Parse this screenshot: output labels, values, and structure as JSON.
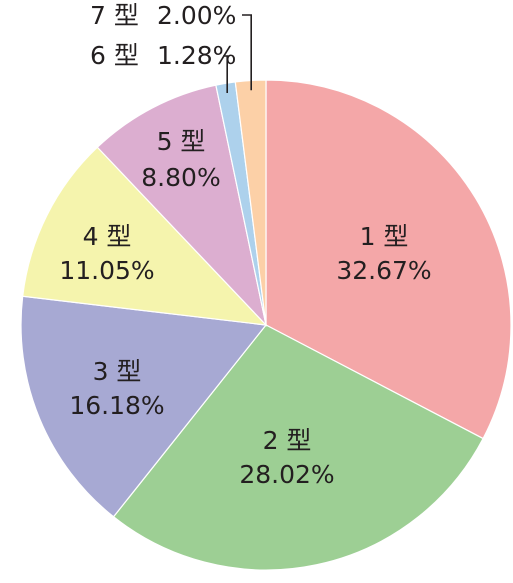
{
  "chart_data": {
    "type": "pie",
    "title": "",
    "slices": [
      {
        "label": "1 型",
        "value": 32.67,
        "value_text": "32.67%",
        "color": "#f4a7a8"
      },
      {
        "label": "2 型",
        "value": 28.02,
        "value_text": "28.02%",
        "color": "#9dcf94"
      },
      {
        "label": "3 型",
        "value": 16.18,
        "value_text": "16.18%",
        "color": "#a7a9d3"
      },
      {
        "label": "4 型",
        "value": 11.05,
        "value_text": "11.05%",
        "color": "#f5f4ad"
      },
      {
        "label": "5 型",
        "value": 8.8,
        "value_text": "8.80%",
        "color": "#dcaed0"
      },
      {
        "label": "6 型",
        "value": 1.28,
        "value_text": "1.28%",
        "color": "#add1ec"
      },
      {
        "label": "7 型",
        "value": 2.0,
        "value_text": "2.00%",
        "color": "#fcd0a7"
      }
    ],
    "start": "12 o'clock",
    "direction": "clockwise",
    "legend": "none"
  }
}
